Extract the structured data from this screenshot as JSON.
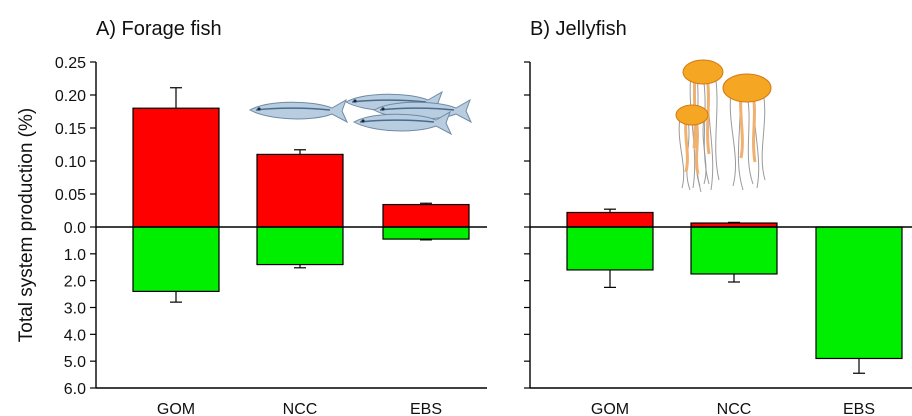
{
  "colors": {
    "positive": "#ff0000",
    "negative": "#00ee00",
    "axis": "#000000",
    "fish_body": "#b9cde0",
    "jelly_bell": "#f5a623"
  },
  "icons": {
    "panel_a": "forage-fish-icon",
    "panel_b": "jellyfish-icon"
  },
  "ylabel": "Total system production (%)",
  "chart_data": [
    {
      "type": "bar",
      "title": "A) Forage fish",
      "categories": [
        "GOM",
        "NCC",
        "EBS"
      ],
      "ylabel": "Total system production (%)",
      "upper_axis": {
        "ylim": [
          0,
          0.25
        ],
        "ticks": [
          "0.25",
          "0.20",
          "0.15",
          "0.10",
          "0.05",
          "0.0"
        ]
      },
      "lower_axis": {
        "ylim": [
          0,
          6.0
        ],
        "ticks": [
          "1.0",
          "2.0",
          "3.0",
          "4.0",
          "5.0",
          "6.0"
        ],
        "direction": "downward"
      },
      "series": [
        {
          "values": [
            0.18,
            0.11,
            0.034
          ],
          "errors": [
            0.031,
            0.007,
            0.002
          ],
          "color": "#ff0000"
        },
        {
          "values": [
            2.4,
            1.4,
            0.45
          ],
          "errors": [
            0.4,
            0.12,
            0.03
          ],
          "color": "#00ee00"
        }
      ],
      "grid": false
    },
    {
      "type": "bar",
      "title": "B) Jellyfish",
      "categories": [
        "GOM",
        "NCC",
        "EBS"
      ],
      "upper_axis": {
        "ylim": [
          0,
          0.25
        ],
        "ticks": []
      },
      "lower_axis": {
        "ylim": [
          0,
          6.0
        ],
        "ticks": [],
        "direction": "downward"
      },
      "series": [
        {
          "values": [
            0.022,
            0.006,
            0.0
          ],
          "errors": [
            0.005,
            0.001,
            0.0
          ],
          "color": "#ff0000"
        },
        {
          "values": [
            1.6,
            1.75,
            4.9
          ],
          "errors": [
            0.65,
            0.3,
            0.55
          ],
          "color": "#00ee00"
        }
      ],
      "grid": false
    }
  ]
}
